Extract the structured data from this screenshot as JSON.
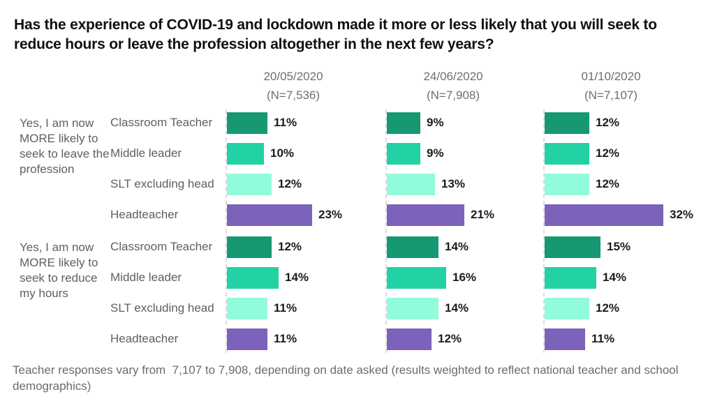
{
  "title": "Has the experience of COVID-19 and lockdown made it more or less likely that you will seek to reduce hours or leave the profession altogether in the next few years?",
  "footer": "Teacher responses vary from  7,107 to 7,908, depending on date asked (results weighted to reflect national teacher and school demographics)",
  "chart_data": {
    "type": "bar",
    "orientation": "horizontal",
    "value_suffix": "%",
    "xlim": [
      0,
      35
    ],
    "legend": "none",
    "grid": "dashed-baseline-per-column",
    "columns": [
      {
        "date": "20/05/2020",
        "n_label": "(N=7,536)"
      },
      {
        "date": "24/06/2020",
        "n_label": "(N=7,908)"
      },
      {
        "date": "01/10/2020",
        "n_label": "(N=7,107)"
      }
    ],
    "groups": [
      {
        "label": "Yes, I am now MORE likely to seek to leave the profession",
        "rows": [
          {
            "role": "Classroom Teacher",
            "color": "#169873",
            "values": [
              11,
              9,
              12
            ]
          },
          {
            "role": "Middle leader",
            "color": "#22d1a4",
            "values": [
              10,
              9,
              12
            ]
          },
          {
            "role": "SLT excluding head",
            "color": "#92fbdc",
            "values": [
              12,
              13,
              12
            ]
          },
          {
            "role": "Headteacher",
            "color": "#7c62ba",
            "values": [
              23,
              21,
              32
            ]
          }
        ]
      },
      {
        "label": "Yes, I am now MORE likely to seek to reduce my hours",
        "rows": [
          {
            "role": "Classroom Teacher",
            "color": "#169873",
            "values": [
              12,
              14,
              15
            ]
          },
          {
            "role": "Middle leader",
            "color": "#22d1a4",
            "values": [
              14,
              16,
              14
            ]
          },
          {
            "role": "SLT excluding head",
            "color": "#92fbdc",
            "values": [
              11,
              14,
              12
            ]
          },
          {
            "role": "Headteacher",
            "color": "#7c62ba",
            "values": [
              11,
              12,
              11
            ]
          }
        ]
      }
    ],
    "colors": {
      "classroom_teacher": "#169873",
      "middle_leader": "#22d1a4",
      "slt_excluding_head": "#92fbdc",
      "headteacher": "#7c62ba"
    }
  }
}
